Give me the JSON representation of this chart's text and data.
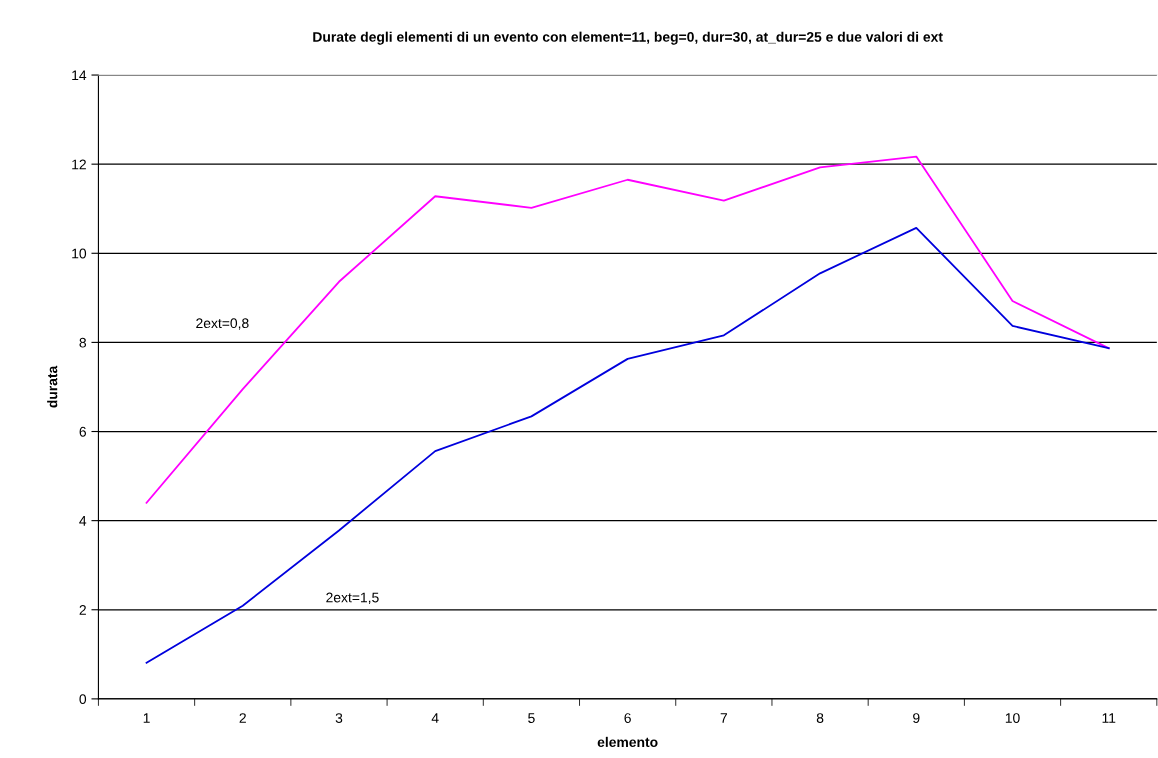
{
  "chart_data": {
    "type": "line",
    "title": "Durate degli elementi di un evento con element=11, beg=0, dur=30, at_dur=25 e due valori di ext",
    "xlabel": "elemento",
    "ylabel": "durata",
    "categories": [
      "1",
      "2",
      "3",
      "4",
      "5",
      "6",
      "7",
      "8",
      "9",
      "10",
      "11"
    ],
    "series": [
      {
        "name": "2ext=0,8",
        "color": "#ff00ff",
        "values": [
          4.4,
          6.95,
          9.36,
          11.28,
          11.02,
          11.65,
          11.18,
          11.93,
          12.17,
          8.93,
          7.87
        ]
      },
      {
        "name": "2ext=1,5",
        "color": "#0000dd",
        "values": [
          0.81,
          2.09,
          3.78,
          5.56,
          6.34,
          7.63,
          8.16,
          9.55,
          10.57,
          8.37,
          7.87
        ]
      }
    ],
    "ylim": [
      0,
      14
    ],
    "yticks": [
      0,
      2,
      4,
      6,
      8,
      10,
      12,
      14
    ],
    "grid": "y",
    "legend": false,
    "marker": "none",
    "line_style": "solid"
  }
}
